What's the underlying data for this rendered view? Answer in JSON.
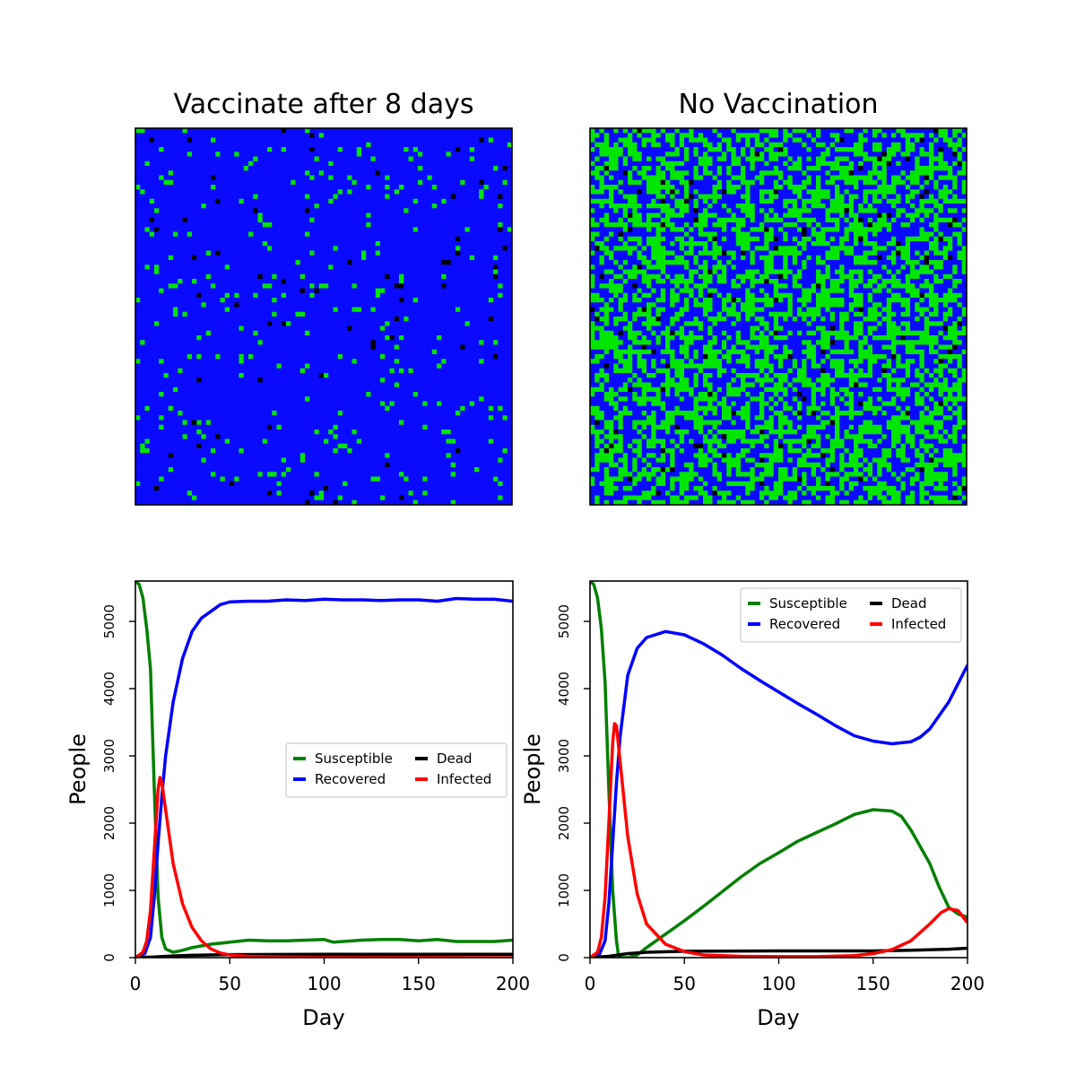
{
  "colors": {
    "susceptible": "#008000",
    "recovered": "#0000ff",
    "dead": "#000000",
    "infected": "#ff0000",
    "grid_recovered": "#0a0aff",
    "grid_susceptible": "#00e600"
  },
  "grids": [
    {
      "title": "Vaccinate after 8 days",
      "green_fraction": 0.05,
      "black_fraction": 0.01
    },
    {
      "title": "No Vaccination",
      "green_fraction": 0.5,
      "black_fraction": 0.02
    }
  ],
  "chart_data": [
    {
      "type": "line",
      "xlabel": "Day",
      "ylabel": "People",
      "xlim": [
        0,
        200
      ],
      "ylim": [
        0,
        5600
      ],
      "xticks": [
        0,
        50,
        100,
        150,
        200
      ],
      "yticks": [
        0,
        1000,
        2000,
        3000,
        4000,
        5000
      ],
      "legend_position": "center-right",
      "series": [
        {
          "name": "Susceptible",
          "color": "#008000",
          "points": [
            [
              0,
              5600
            ],
            [
              2,
              5550
            ],
            [
              4,
              5350
            ],
            [
              6,
              4900
            ],
            [
              8,
              4300
            ],
            [
              10,
              2500
            ],
            [
              12,
              900
            ],
            [
              14,
              300
            ],
            [
              16,
              130
            ],
            [
              20,
              80
            ],
            [
              25,
              110
            ],
            [
              30,
              150
            ],
            [
              40,
              200
            ],
            [
              50,
              230
            ],
            [
              60,
              260
            ],
            [
              70,
              250
            ],
            [
              80,
              250
            ],
            [
              90,
              260
            ],
            [
              100,
              270
            ],
            [
              105,
              230
            ],
            [
              110,
              240
            ],
            [
              120,
              260
            ],
            [
              130,
              270
            ],
            [
              140,
              270
            ],
            [
              150,
              250
            ],
            [
              160,
              270
            ],
            [
              170,
              240
            ],
            [
              180,
              240
            ],
            [
              190,
              240
            ],
            [
              200,
              260
            ]
          ]
        },
        {
          "name": "Recovered",
          "color": "#0000ff",
          "points": [
            [
              0,
              0
            ],
            [
              5,
              60
            ],
            [
              8,
              300
            ],
            [
              10,
              900
            ],
            [
              12,
              1700
            ],
            [
              14,
              2400
            ],
            [
              16,
              3000
            ],
            [
              20,
              3800
            ],
            [
              25,
              4450
            ],
            [
              30,
              4850
            ],
            [
              35,
              5050
            ],
            [
              40,
              5150
            ],
            [
              45,
              5250
            ],
            [
              50,
              5290
            ],
            [
              60,
              5300
            ],
            [
              70,
              5300
            ],
            [
              80,
              5320
            ],
            [
              90,
              5310
            ],
            [
              100,
              5330
            ],
            [
              110,
              5320
            ],
            [
              120,
              5320
            ],
            [
              130,
              5310
            ],
            [
              140,
              5320
            ],
            [
              150,
              5320
            ],
            [
              160,
              5300
            ],
            [
              170,
              5340
            ],
            [
              180,
              5330
            ],
            [
              190,
              5330
            ],
            [
              200,
              5300
            ]
          ]
        },
        {
          "name": "Dead",
          "color": "#000000",
          "points": [
            [
              0,
              0
            ],
            [
              10,
              10
            ],
            [
              20,
              25
            ],
            [
              30,
              35
            ],
            [
              50,
              45
            ],
            [
              100,
              50
            ],
            [
              150,
              50
            ],
            [
              200,
              50
            ]
          ]
        },
        {
          "name": "Infected",
          "color": "#ff0000",
          "points": [
            [
              0,
              0
            ],
            [
              4,
              80
            ],
            [
              6,
              250
            ],
            [
              8,
              700
            ],
            [
              10,
              1600
            ],
            [
              12,
              2500
            ],
            [
              13,
              2680
            ],
            [
              14,
              2600
            ],
            [
              16,
              2200
            ],
            [
              20,
              1400
            ],
            [
              25,
              800
            ],
            [
              30,
              450
            ],
            [
              35,
              250
            ],
            [
              40,
              130
            ],
            [
              45,
              70
            ],
            [
              50,
              40
            ],
            [
              60,
              20
            ],
            [
              80,
              10
            ],
            [
              100,
              5
            ],
            [
              200,
              0
            ]
          ]
        }
      ],
      "legend": [
        {
          "label": "Susceptible",
          "color": "#008000"
        },
        {
          "label": "Dead",
          "color": "#000000"
        },
        {
          "label": "Recovered",
          "color": "#0000ff"
        },
        {
          "label": "Infected",
          "color": "#ff0000"
        }
      ]
    },
    {
      "type": "line",
      "xlabel": "Day",
      "ylabel": "People",
      "xlim": [
        0,
        200
      ],
      "ylim": [
        0,
        5600
      ],
      "xticks": [
        0,
        50,
        100,
        150,
        200
      ],
      "yticks": [
        0,
        1000,
        2000,
        3000,
        4000,
        5000
      ],
      "legend_position": "top-right",
      "series": [
        {
          "name": "Susceptible",
          "color": "#008000",
          "points": [
            [
              0,
              5600
            ],
            [
              2,
              5550
            ],
            [
              4,
              5350
            ],
            [
              6,
              4900
            ],
            [
              8,
              4100
            ],
            [
              10,
              2500
            ],
            [
              12,
              1000
            ],
            [
              14,
              250
            ],
            [
              15,
              50
            ],
            [
              16,
              0
            ],
            [
              20,
              0
            ],
            [
              25,
              40
            ],
            [
              30,
              150
            ],
            [
              40,
              350
            ],
            [
              50,
              550
            ],
            [
              60,
              760
            ],
            [
              70,
              980
            ],
            [
              80,
              1200
            ],
            [
              90,
              1400
            ],
            [
              100,
              1560
            ],
            [
              110,
              1730
            ],
            [
              120,
              1860
            ],
            [
              130,
              1990
            ],
            [
              140,
              2130
            ],
            [
              150,
              2200
            ],
            [
              160,
              2180
            ],
            [
              165,
              2100
            ],
            [
              170,
              1900
            ],
            [
              180,
              1400
            ],
            [
              185,
              1050
            ],
            [
              190,
              750
            ],
            [
              195,
              650
            ],
            [
              200,
              600
            ]
          ]
        },
        {
          "name": "Recovered",
          "color": "#0000ff",
          "points": [
            [
              0,
              0
            ],
            [
              5,
              50
            ],
            [
              8,
              250
            ],
            [
              10,
              800
            ],
            [
              12,
              1700
            ],
            [
              14,
              2600
            ],
            [
              16,
              3300
            ],
            [
              20,
              4200
            ],
            [
              25,
              4600
            ],
            [
              30,
              4760
            ],
            [
              40,
              4850
            ],
            [
              50,
              4800
            ],
            [
              60,
              4670
            ],
            [
              70,
              4500
            ],
            [
              80,
              4300
            ],
            [
              90,
              4120
            ],
            [
              100,
              3950
            ],
            [
              110,
              3780
            ],
            [
              120,
              3620
            ],
            [
              130,
              3450
            ],
            [
              140,
              3300
            ],
            [
              150,
              3220
            ],
            [
              160,
              3180
            ],
            [
              170,
              3210
            ],
            [
              175,
              3280
            ],
            [
              180,
              3400
            ],
            [
              190,
              3800
            ],
            [
              200,
              4350
            ]
          ]
        },
        {
          "name": "Dead",
          "color": "#000000",
          "points": [
            [
              0,
              0
            ],
            [
              10,
              20
            ],
            [
              20,
              60
            ],
            [
              30,
              80
            ],
            [
              50,
              95
            ],
            [
              100,
              100
            ],
            [
              150,
              100
            ],
            [
              170,
              110
            ],
            [
              190,
              125
            ],
            [
              200,
              140
            ]
          ]
        },
        {
          "name": "Infected",
          "color": "#ff0000",
          "points": [
            [
              0,
              0
            ],
            [
              4,
              80
            ],
            [
              6,
              300
            ],
            [
              8,
              900
            ],
            [
              10,
              2000
            ],
            [
              12,
              3200
            ],
            [
              13,
              3480
            ],
            [
              14,
              3450
            ],
            [
              16,
              2900
            ],
            [
              20,
              1800
            ],
            [
              25,
              950
            ],
            [
              30,
              500
            ],
            [
              40,
              200
            ],
            [
              50,
              90
            ],
            [
              60,
              40
            ],
            [
              80,
              20
            ],
            [
              100,
              15
            ],
            [
              120,
              15
            ],
            [
              140,
              30
            ],
            [
              150,
              60
            ],
            [
              160,
              120
            ],
            [
              170,
              250
            ],
            [
              180,
              500
            ],
            [
              186,
              670
            ],
            [
              190,
              730
            ],
            [
              195,
              700
            ],
            [
              200,
              520
            ]
          ]
        }
      ],
      "legend": [
        {
          "label": "Susceptible",
          "color": "#008000"
        },
        {
          "label": "Dead",
          "color": "#000000"
        },
        {
          "label": "Recovered",
          "color": "#0000ff"
        },
        {
          "label": "Infected",
          "color": "#ff0000"
        }
      ]
    }
  ]
}
